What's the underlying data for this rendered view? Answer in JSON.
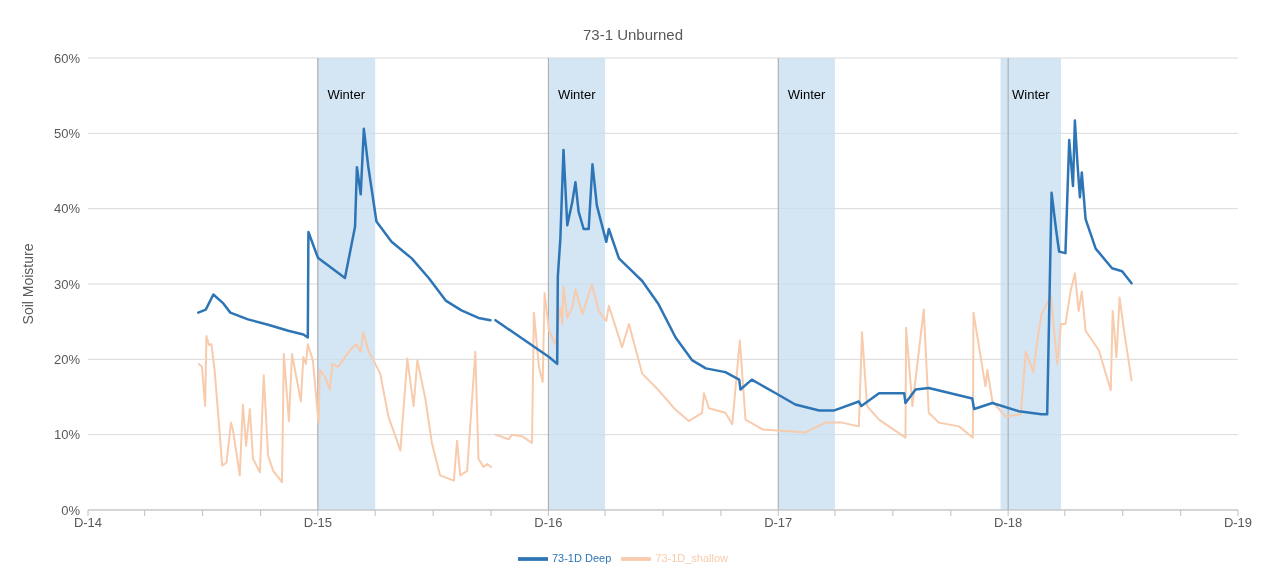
{
  "chart_data": {
    "type": "line",
    "title": "73-1 Unburned",
    "ylabel": "Soil Moisture",
    "xlim": [
      "2014-12-01",
      "2019-12-01"
    ],
    "xticks": [
      {
        "value": "2014-12-01",
        "label": "D-14"
      },
      {
        "value": "2015-03-01",
        "label": null
      },
      {
        "value": "2015-06-01",
        "label": null
      },
      {
        "value": "2015-09-01",
        "label": null
      },
      {
        "value": "2015-12-01",
        "label": "D-15"
      },
      {
        "value": "2016-03-01",
        "label": null
      },
      {
        "value": "2016-06-01",
        "label": null
      },
      {
        "value": "2016-09-01",
        "label": null
      },
      {
        "value": "2016-12-01",
        "label": "D-16"
      },
      {
        "value": "2017-03-01",
        "label": null
      },
      {
        "value": "2017-06-01",
        "label": null
      },
      {
        "value": "2017-09-01",
        "label": null
      },
      {
        "value": "2017-12-01",
        "label": "D-17"
      },
      {
        "value": "2018-03-01",
        "label": null
      },
      {
        "value": "2018-06-01",
        "label": null
      },
      {
        "value": "2018-09-01",
        "label": null
      },
      {
        "value": "2018-12-01",
        "label": "D-18"
      },
      {
        "value": "2019-03-01",
        "label": null
      },
      {
        "value": "2019-06-01",
        "label": null
      },
      {
        "value": "2019-09-01",
        "label": null
      },
      {
        "value": "2019-12-01",
        "label": "D-19"
      }
    ],
    "ylim": [
      0,
      60
    ],
    "yticks": [
      {
        "value": 0,
        "label": "0%"
      },
      {
        "value": 10,
        "label": "10%"
      },
      {
        "value": 20,
        "label": "20%"
      },
      {
        "value": 30,
        "label": "30%"
      },
      {
        "value": 40,
        "label": "40%"
      },
      {
        "value": 50,
        "label": "50%"
      },
      {
        "value": 60,
        "label": "60%"
      }
    ],
    "grid": "y",
    "legend": "bottom",
    "marker": "none",
    "line_style": "solid",
    "bands": [
      {
        "axis": "x",
        "from": "2015-11-30",
        "to": "2016-03-01",
        "label": "Winter",
        "color": "#c5dcf0"
      },
      {
        "axis": "x",
        "from": "2016-12-01",
        "to": "2017-03-01",
        "label": "Winter",
        "color": "#c5dcf0"
      },
      {
        "axis": "x",
        "from": "2017-12-01",
        "to": "2018-03-01",
        "label": "Winter",
        "color": "#c5dcf0"
      },
      {
        "axis": "x",
        "from": "2018-11-19",
        "to": "2019-02-23",
        "label": "Winter",
        "color": "#c5dcf0"
      }
    ],
    "ref_lines": [
      {
        "axis": "x",
        "value": "2015-12-01",
        "color": "#a6a6a6"
      },
      {
        "axis": "x",
        "value": "2016-12-01",
        "color": "#a6a6a6"
      },
      {
        "axis": "x",
        "value": "2017-12-01",
        "color": "#a6a6a6"
      },
      {
        "axis": "x",
        "value": "2018-12-01",
        "color": "#a6a6a6"
      }
    ],
    "series": [
      {
        "name": "73-1D_shallow",
        "color": "#f8cbad",
        "x": [
          "2015-05-26",
          "2015-05-31",
          "2015-06-05",
          "2015-06-07",
          "2015-06-11",
          "2015-06-15",
          "2015-06-20",
          "2015-06-26",
          "2015-07-02",
          "2015-07-09",
          "2015-07-16",
          "2015-07-19",
          "2015-07-30",
          "2015-08-04",
          "2015-08-09",
          "2015-08-15",
          "2015-08-20",
          "2015-08-31",
          "2015-09-06",
          "2015-09-13",
          "2015-09-21",
          "2015-10-05",
          "2015-10-08",
          "2015-10-16",
          "2015-10-21",
          "2015-11-04",
          "2015-11-08",
          "2015-11-12",
          "2015-11-15",
          "2015-11-23",
          "2015-12-02",
          "2015-12-04",
          "2015-12-12",
          "2015-12-20",
          "2015-12-24",
          "2016-01-02",
          "2016-01-13",
          "2016-01-21",
          "2016-01-31",
          "2016-02-07",
          "2016-02-11",
          "2016-02-19",
          "2016-03-09",
          "2016-03-22",
          "2016-04-02",
          "2016-04-10",
          "2016-04-21",
          "2016-05-01",
          "2016-05-07",
          "2016-05-20",
          "2016-05-30",
          "2016-06-12",
          "2016-07-04",
          "2016-07-09",
          "2016-07-14",
          "2016-07-25",
          "2016-08-07",
          "2016-08-12",
          "2016-08-20",
          "2016-08-26",
          "2016-09-01",
          "2016-09-04",
          "2016-09-08",
          "2016-09-29",
          "2016-10-04",
          "2016-10-20",
          "2016-11-05",
          "2016-11-08",
          "2016-11-16",
          "2016-11-22",
          "2016-11-25",
          "2016-12-02",
          "2016-12-12",
          "2016-12-20",
          "2016-12-23",
          "2016-12-25",
          "2016-12-31",
          "2017-01-08",
          "2017-01-13",
          "2017-01-24",
          "2017-02-08",
          "2017-02-19",
          "2017-03-03",
          "2017-03-07",
          "2017-03-28",
          "2017-04-08",
          "2017-04-29",
          "2017-05-25",
          "2017-06-21",
          "2017-07-12",
          "2017-08-02",
          "2017-08-05",
          "2017-08-13",
          "2017-09-08",
          "2017-09-19",
          "2017-10-01",
          "2017-10-10",
          "2017-11-06",
          "2017-12-13",
          "2018-01-13",
          "2018-02-14",
          "2018-03-12",
          "2018-04-08",
          "2018-04-13",
          "2018-04-21",
          "2018-05-10",
          "2018-06-21",
          "2018-06-22",
          "2018-07-02",
          "2018-07-20",
          "2018-07-28",
          "2018-08-13",
          "2018-09-14",
          "2018-10-06",
          "2018-10-07",
          "2018-10-26",
          "2018-10-29",
          "2018-11-06",
          "2018-11-27",
          "2018-12-21",
          "2018-12-29",
          "2019-01-10",
          "2019-01-18",
          "2019-01-23",
          "2019-02-07",
          "2019-02-17",
          "2019-02-23",
          "2019-03-02",
          "2019-03-10",
          "2019-03-17",
          "2019-03-23",
          "2019-03-28",
          "2019-04-03",
          "2019-04-24",
          "2019-05-13",
          "2019-05-16",
          "2019-05-22",
          "2019-05-27",
          "2019-06-03",
          "2019-06-15"
        ],
        "values": [
          19.4,
          19.0,
          13.8,
          23.1,
          21.9,
          22.0,
          18.6,
          12.4,
          5.9,
          6.3,
          11.6,
          10.7,
          4.6,
          14.0,
          8.5,
          13.4,
          6.8,
          5.0,
          17.9,
          7.2,
          5.2,
          3.7,
          20.7,
          11.8,
          20.7,
          14.4,
          20.3,
          19.4,
          22.0,
          19.9,
          11.6,
          18.6,
          17.7,
          16.0,
          19.4,
          19.0,
          20.3,
          21.2,
          22.0,
          21.0,
          23.6,
          21.2,
          18.1,
          12.4,
          9.8,
          7.9,
          20.1,
          13.8,
          19.9,
          14.6,
          8.9,
          4.6,
          3.9,
          9.2,
          4.6,
          5.2,
          21.0,
          6.8,
          5.7,
          6.1,
          5.7,
          null,
          10.0,
          9.4,
          10.0,
          9.8,
          8.9,
          26.2,
          19.0,
          17.0,
          28.8,
          23.8,
          22.0,
          26.9,
          24.7,
          29.7,
          25.5,
          26.9,
          29.3,
          26.0,
          29.9,
          26.4,
          25.1,
          27.1,
          21.6,
          24.7,
          18.1,
          15.9,
          13.3,
          11.8,
          12.9,
          15.5,
          13.5,
          12.9,
          11.4,
          22.5,
          12.0,
          10.7,
          10.5,
          10.3,
          11.6,
          11.6,
          11.1,
          23.6,
          13.8,
          12.0,
          9.6,
          24.2,
          13.8,
          26.6,
          12.9,
          11.6,
          11.1,
          9.6,
          26.2,
          16.4,
          18.6,
          14.4,
          12.4,
          12.7,
          21.0,
          18.3,
          23.4,
          26.0,
          28.4,
          19.4,
          24.7,
          24.7,
          29.0,
          31.4,
          26.4,
          29.0,
          23.8,
          21.2,
          15.9,
          26.4,
          20.3,
          28.2,
          23.8,
          17.2
        ]
      },
      {
        "name": "73-1D Deep",
        "color": "#2e75b6",
        "x": [
          "2015-05-25",
          "2015-06-06",
          "2015-06-18",
          "2015-07-03",
          "2015-07-15",
          "2015-08-12",
          "2015-09-13",
          "2015-10-15",
          "2015-11-08",
          "2015-11-15",
          "2015-11-16",
          "2015-12-01",
          "2016-01-13",
          "2016-01-29",
          "2016-02-01",
          "2016-02-07",
          "2016-02-12",
          "2016-02-19",
          "2016-03-03",
          "2016-03-27",
          "2016-04-28",
          "2016-05-25",
          "2016-06-21",
          "2016-07-16",
          "2016-08-12",
          "2016-08-31",
          "2016-09-04",
          "2016-09-08",
          "2016-12-02",
          "2016-12-15",
          "2016-12-16",
          "2016-12-20",
          "2016-12-25",
          "2016-12-31",
          "2017-01-08",
          "2017-01-13",
          "2017-01-18",
          "2017-01-26",
          "2017-02-03",
          "2017-02-09",
          "2017-02-16",
          "2017-03-03",
          "2017-03-07",
          "2017-03-23",
          "2017-04-08",
          "2017-04-29",
          "2017-05-25",
          "2017-06-21",
          "2017-07-17",
          "2017-08-08",
          "2017-09-08",
          "2017-09-30",
          "2017-10-02",
          "2017-10-20",
          "2017-11-27",
          "2017-12-28",
          "2018-02-04",
          "2018-02-27",
          "2018-04-08",
          "2018-04-12",
          "2018-05-10",
          "2018-06-19",
          "2018-06-21",
          "2018-07-07",
          "2018-07-28",
          "2018-10-05",
          "2018-10-08",
          "2018-11-06",
          "2018-12-18",
          "2019-01-23",
          "2019-02-01",
          "2019-02-08",
          "2019-02-15",
          "2019-02-20",
          "2019-03-02",
          "2019-03-08",
          "2019-03-14",
          "2019-03-17",
          "2019-03-21",
          "2019-03-25",
          "2019-03-28",
          "2019-04-03",
          "2019-04-19",
          "2019-05-15",
          "2019-05-31",
          "2019-06-15"
        ],
        "values": [
          26.2,
          26.6,
          28.6,
          27.5,
          26.2,
          25.3,
          24.6,
          23.8,
          23.3,
          22.9,
          36.9,
          33.5,
          30.8,
          37.6,
          45.5,
          41.9,
          50.6,
          45.6,
          38.3,
          35.6,
          33.4,
          30.8,
          27.8,
          26.5,
          25.5,
          25.2,
          null,
          25.2,
          20.3,
          19.4,
          31.0,
          36.0,
          47.8,
          37.8,
          40.9,
          43.5,
          39.6,
          37.3,
          37.3,
          45.9,
          40.4,
          35.6,
          37.3,
          33.4,
          32.1,
          30.4,
          27.3,
          22.9,
          19.9,
          18.8,
          18.3,
          17.3,
          16.0,
          17.3,
          15.5,
          14.0,
          13.2,
          13.2,
          14.4,
          13.8,
          15.5,
          15.5,
          14.2,
          16.0,
          16.2,
          14.8,
          13.4,
          14.2,
          13.1,
          12.7,
          12.7,
          42.1,
          37.3,
          34.3,
          34.1,
          49.1,
          43.0,
          51.7,
          46.1,
          41.5,
          44.8,
          38.6,
          34.7,
          32.1,
          31.7,
          30.1
        ]
      }
    ]
  }
}
